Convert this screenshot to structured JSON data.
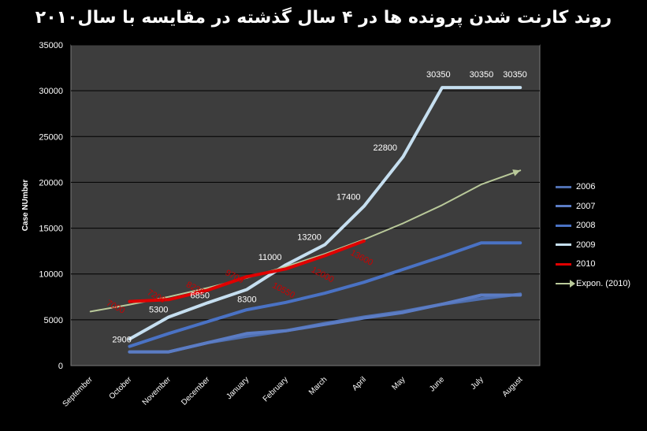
{
  "chart_data": {
    "type": "line",
    "title": "روند کارنت شدن پرونده ها در ۴ سال گذشته در مقایسه با سال۲۰۱۰",
    "xlabel": "",
    "ylabel": "Case NUmber",
    "categories": [
      "September",
      "October",
      "November",
      "December",
      "January",
      "February",
      "March",
      "April",
      "May",
      "June",
      "July",
      "August"
    ],
    "ylim": [
      0,
      35000
    ],
    "yticks": [
      0,
      5000,
      10000,
      15000,
      20000,
      25000,
      30000,
      35000
    ],
    "legend_position": "right",
    "grid": true,
    "series": [
      {
        "name": "2006",
        "color": "#4f6fb0",
        "values": [
          null,
          1500,
          1500,
          2500,
          3200,
          3800,
          4600,
          5300,
          5900,
          6700,
          7300,
          7800
        ]
      },
      {
        "name": "2007",
        "color": "#5b7cc4",
        "values": [
          null,
          1500,
          1500,
          2500,
          3500,
          3800,
          4500,
          5200,
          5800,
          6700,
          7700,
          7700
        ]
      },
      {
        "name": "2008",
        "color": "#4a72c4",
        "values": [
          null,
          2100,
          3500,
          4800,
          6100,
          6900,
          7900,
          9100,
          10500,
          11900,
          13400,
          13400
        ]
      },
      {
        "name": "2009",
        "color": "#c6dff0",
        "values": [
          null,
          2900,
          5300,
          6850,
          8300,
          11000,
          13200,
          17400,
          22800,
          30350,
          30350,
          30350
        ],
        "labels_color": "#ffffff"
      },
      {
        "name": "2010",
        "color": "#e00000",
        "values": [
          null,
          7000,
          7200,
          8230,
          9700,
          10550,
          12000,
          13600,
          null,
          null,
          null,
          null
        ],
        "labels_color": "#cc0000"
      },
      {
        "name": "Expon. (2010)",
        "color": "#b9c99a",
        "trend": true,
        "values": [
          5900,
          6660,
          7510,
          8480,
          9570,
          10800,
          12190,
          13760,
          15530,
          17520,
          19770,
          21300
        ]
      }
    ],
    "data_labels": [
      {
        "series": "2009",
        "text": "2900",
        "category": "October",
        "value": 2900
      },
      {
        "series": "2009",
        "text": "5300",
        "category": "November",
        "value": 5300
      },
      {
        "series": "2009",
        "text": "6850",
        "category": "December",
        "value": 6850
      },
      {
        "series": "2009",
        "text": "8300",
        "category": "January",
        "value": 8300
      },
      {
        "series": "2009",
        "text": "11000",
        "category": "February",
        "value": 11000
      },
      {
        "series": "2009",
        "text": "13200",
        "category": "March",
        "value": 13200
      },
      {
        "series": "2009",
        "text": "17400",
        "category": "April",
        "value": 17400
      },
      {
        "series": "2009",
        "text": "22800",
        "category": "May",
        "value": 22800
      },
      {
        "series": "2009",
        "text": "30350",
        "category": "June",
        "value": 30350
      },
      {
        "series": "2009",
        "text": "30350",
        "category": "July",
        "value": 30350
      },
      {
        "series": "2009",
        "text": "30350",
        "category": "August",
        "value": 30350
      },
      {
        "series": "2010",
        "text": "7000",
        "category": "October",
        "value": 7000
      },
      {
        "series": "2010",
        "text": "7200",
        "category": "November",
        "value": 7200
      },
      {
        "series": "2010",
        "text": "8230",
        "category": "December",
        "value": 8230
      },
      {
        "series": "2010",
        "text": "9700",
        "category": "January",
        "value": 9700
      },
      {
        "series": "2010",
        "text": "10550",
        "category": "February",
        "value": 10550
      },
      {
        "series": "2010",
        "text": "12000",
        "category": "March",
        "value": 12000
      },
      {
        "series": "2010",
        "text": "13600",
        "category": "April",
        "value": 13600
      }
    ]
  }
}
